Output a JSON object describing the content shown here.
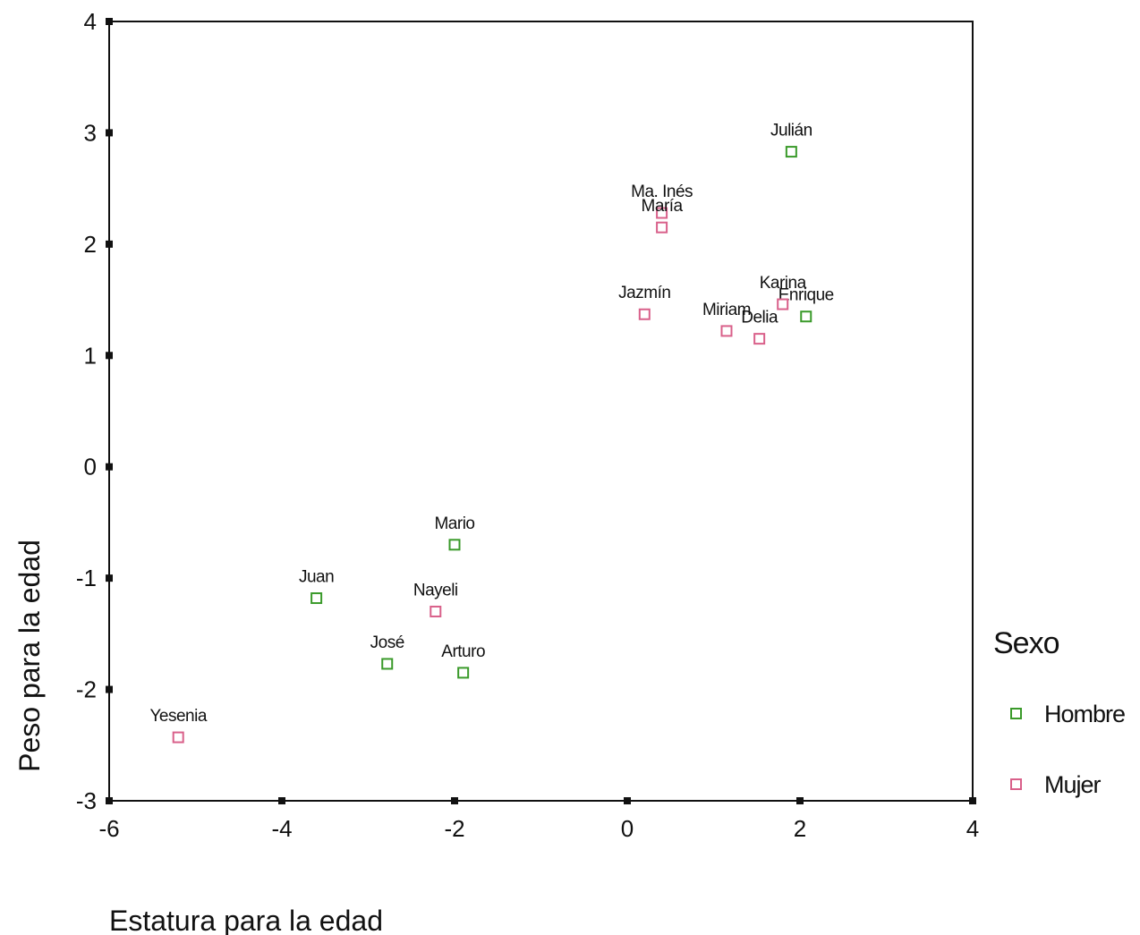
{
  "chart_data": {
    "type": "scatter",
    "title": "",
    "xlabel": "Estatura para la edad",
    "ylabel": "Peso para la edad",
    "xlim": [
      -6,
      4
    ],
    "ylim": [
      -3,
      4
    ],
    "xticks": [
      -6,
      -4,
      -2,
      0,
      2,
      4
    ],
    "yticks": [
      -3,
      -2,
      -1,
      0,
      1,
      2,
      3,
      4
    ],
    "grid": false,
    "legend": {
      "title": "Sexo",
      "placement": "right",
      "entries": [
        {
          "name": "Hombre",
          "color": "#3a9a2a"
        },
        {
          "name": "Mujer",
          "color": "#d9608a"
        }
      ]
    },
    "series": [
      {
        "name": "Hombre",
        "color": "#3a9a2a",
        "points": [
          {
            "label": "Julián",
            "x": 1.9,
            "y": 2.83
          },
          {
            "label": "Enrique",
            "x": 2.07,
            "y": 1.35
          },
          {
            "label": "Mario",
            "x": -2.0,
            "y": -0.7
          },
          {
            "label": "Juan",
            "x": -3.6,
            "y": -1.18
          },
          {
            "label": "José",
            "x": -2.78,
            "y": -1.77
          },
          {
            "label": "Arturo",
            "x": -1.9,
            "y": -1.85
          }
        ]
      },
      {
        "name": "Mujer",
        "color": "#d9608a",
        "points": [
          {
            "label": "Ma. Inés",
            "x": 0.4,
            "y": 2.28
          },
          {
            "label": "María",
            "x": 0.4,
            "y": 2.15
          },
          {
            "label": "Jazmín",
            "x": 0.2,
            "y": 1.37
          },
          {
            "label": "Karina",
            "x": 1.8,
            "y": 1.46
          },
          {
            "label": "Miriam",
            "x": 1.15,
            "y": 1.22
          },
          {
            "label": "Delia",
            "x": 1.53,
            "y": 1.15
          },
          {
            "label": "Nayeli",
            "x": -2.22,
            "y": -1.3
          },
          {
            "label": "Yesenia",
            "x": -5.2,
            "y": -2.43
          }
        ]
      }
    ]
  }
}
